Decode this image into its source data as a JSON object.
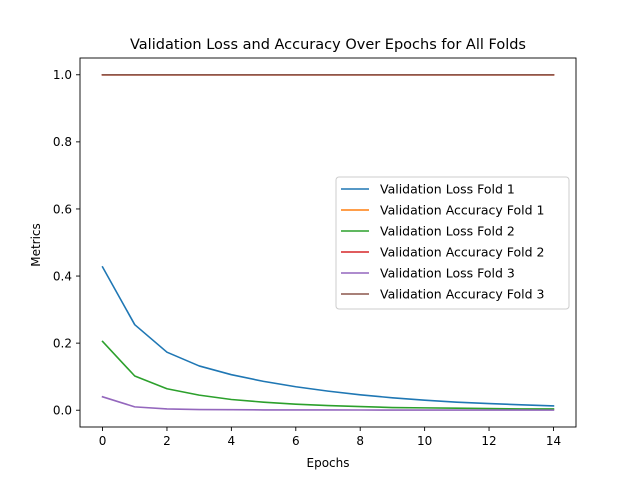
{
  "chart_data": {
    "type": "line",
    "title": "Validation Loss and Accuracy Over Epochs for All Folds",
    "xlabel": "Epochs",
    "ylabel": "Metrics",
    "xlim": [
      -0.7,
      14.7
    ],
    "ylim": [
      -0.05,
      1.05
    ],
    "xticks": [
      0,
      2,
      4,
      6,
      8,
      10,
      12,
      14
    ],
    "yticks": [
      0.0,
      0.2,
      0.4,
      0.6,
      0.8,
      1.0
    ],
    "xtick_labels": [
      "0",
      "2",
      "4",
      "6",
      "8",
      "10",
      "12",
      "14"
    ],
    "ytick_labels": [
      "0.0",
      "0.2",
      "0.4",
      "0.6",
      "0.8",
      "1.0"
    ],
    "grid": false,
    "legend_position": "center-right",
    "x": [
      0,
      1,
      2,
      3,
      4,
      5,
      6,
      7,
      8,
      9,
      10,
      11,
      12,
      13,
      14
    ],
    "series": [
      {
        "name": "Validation Loss Fold 1",
        "color": "#1f77b4",
        "values": [
          0.427,
          0.255,
          0.173,
          0.132,
          0.106,
          0.086,
          0.07,
          0.057,
          0.046,
          0.037,
          0.03,
          0.024,
          0.02,
          0.016,
          0.013
        ]
      },
      {
        "name": "Validation Accuracy Fold 1",
        "color": "#ff7f0e",
        "values": [
          1.0,
          1.0,
          1.0,
          1.0,
          1.0,
          1.0,
          1.0,
          1.0,
          1.0,
          1.0,
          1.0,
          1.0,
          1.0,
          1.0,
          1.0
        ]
      },
      {
        "name": "Validation Loss Fold 2",
        "color": "#2ca02c",
        "values": [
          0.205,
          0.102,
          0.064,
          0.045,
          0.032,
          0.024,
          0.018,
          0.014,
          0.011,
          0.008,
          0.007,
          0.006,
          0.005,
          0.004,
          0.004
        ]
      },
      {
        "name": "Validation Accuracy Fold 2",
        "color": "#d62728",
        "values": [
          1.0,
          1.0,
          1.0,
          1.0,
          1.0,
          1.0,
          1.0,
          1.0,
          1.0,
          1.0,
          1.0,
          1.0,
          1.0,
          1.0,
          1.0
        ]
      },
      {
        "name": "Validation Loss Fold 3",
        "color": "#9467bd",
        "values": [
          0.04,
          0.01,
          0.004,
          0.002,
          0.0015,
          0.001,
          0.001,
          0.0008,
          0.0007,
          0.0006,
          0.0005,
          0.0005,
          0.0004,
          0.0004,
          0.0003
        ]
      },
      {
        "name": "Validation Accuracy Fold 3",
        "color": "#8c564b",
        "values": [
          1.0,
          1.0,
          1.0,
          1.0,
          1.0,
          1.0,
          1.0,
          1.0,
          1.0,
          1.0,
          1.0,
          1.0,
          1.0,
          1.0,
          1.0
        ]
      }
    ]
  }
}
